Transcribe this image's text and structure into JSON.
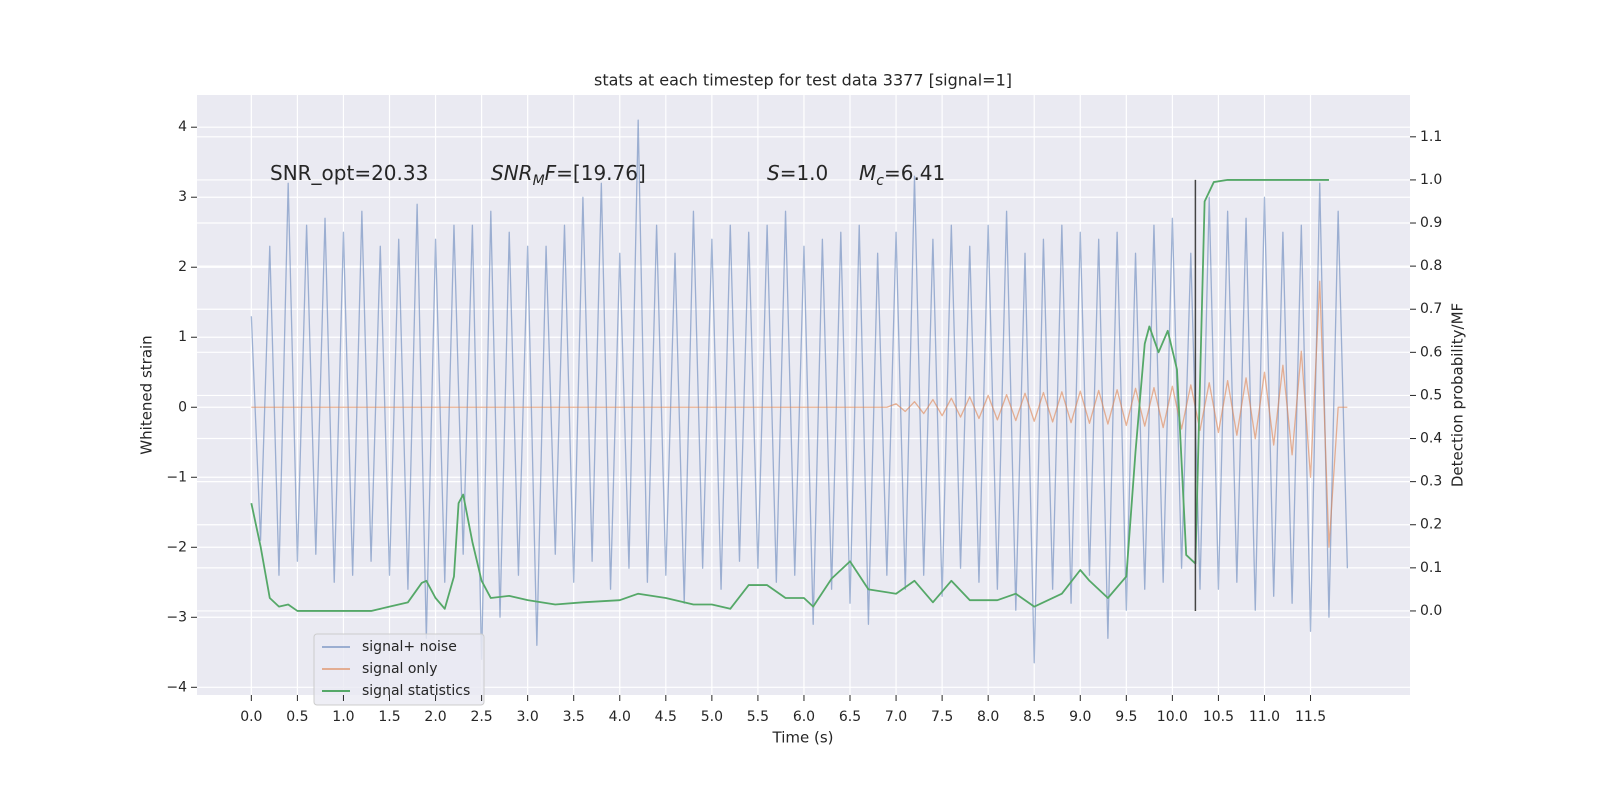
{
  "chart_data": {
    "type": "line",
    "title": "stats at each timestep for test data 3377 [signal=1]",
    "xlabel": "Time (s)",
    "ylabel": "Whitened strain",
    "y2label": "Detection probability/MF",
    "grid": true,
    "legend": "lower left",
    "annotations": [
      [
        {
          "text": "SNR_opt=20.33"
        }
      ],
      [
        {
          "text": "SNR",
          "style": "italic"
        },
        {
          "text": "M",
          "style": "sub"
        },
        {
          "text": "F",
          "style": "italic"
        },
        {
          "text": "=[19.76]"
        }
      ],
      [
        {
          "text": "S",
          "style": "italic"
        },
        {
          "text": "=1.0"
        }
      ],
      [
        {
          "text": "M",
          "style": "italic"
        },
        {
          "text": "c",
          "style": "sub"
        },
        {
          "text": "=6.41"
        }
      ]
    ],
    "xlim": [
      -0.59,
      12.58
    ],
    "ylim": [
      -4.11,
      4.46
    ],
    "y2lim": [
      -0.195,
      1.197
    ],
    "xticks": [
      {
        "value": 0,
        "label": "0.0"
      },
      {
        "value": 0.5,
        "label": "0.5"
      },
      {
        "value": 1,
        "label": "1.0"
      },
      {
        "value": 1.5,
        "label": "1.5"
      },
      {
        "value": 2,
        "label": "2.0"
      },
      {
        "value": 2.5,
        "label": "2.5"
      },
      {
        "value": 3,
        "label": "3.0"
      },
      {
        "value": 3.5,
        "label": "3.5"
      },
      {
        "value": 4,
        "label": "4.0"
      },
      {
        "value": 4.5,
        "label": "4.5"
      },
      {
        "value": 5,
        "label": "5.0"
      },
      {
        "value": 5.5,
        "label": "5.5"
      },
      {
        "value": 6,
        "label": "6.0"
      },
      {
        "value": 6.5,
        "label": "6.5"
      },
      {
        "value": 7,
        "label": "7.0"
      },
      {
        "value": 7.5,
        "label": "7.5"
      },
      {
        "value": 8,
        "label": "8.0"
      },
      {
        "value": 8.5,
        "label": "8.5"
      },
      {
        "value": 9,
        "label": "9.0"
      },
      {
        "value": 9.5,
        "label": "9.5"
      },
      {
        "value": 10,
        "label": "10.0"
      },
      {
        "value": 10.5,
        "label": "10.5"
      },
      {
        "value": 11,
        "label": "11.0"
      },
      {
        "value": 11.5,
        "label": "11.5"
      }
    ],
    "yticks": [
      {
        "value": -4,
        "label": "−4"
      },
      {
        "value": -3,
        "label": "−3"
      },
      {
        "value": -2,
        "label": "−2"
      },
      {
        "value": -1,
        "label": "−1"
      },
      0,
      1,
      2,
      3,
      4
    ],
    "y2ticks": [
      {
        "value": 0,
        "label": "0.0"
      },
      {
        "value": 0.1,
        "label": "0.1"
      },
      {
        "value": 0.2,
        "label": "0.2"
      },
      {
        "value": 0.3,
        "label": "0.3"
      },
      {
        "value": 0.4,
        "label": "0.4"
      },
      {
        "value": 0.5,
        "label": "0.5"
      },
      {
        "value": 0.6,
        "label": "0.6"
      },
      {
        "value": 0.7,
        "label": "0.7"
      },
      {
        "value": 0.8,
        "label": "0.8"
      },
      {
        "value": 0.9,
        "label": "0.9"
      },
      {
        "value": 1,
        "label": "1.0"
      },
      {
        "value": 1.1,
        "label": "1.1"
      }
    ],
    "x": [
      0.0,
      0.1,
      0.2,
      0.3,
      0.4,
      0.5,
      0.6,
      0.7,
      0.8,
      0.9,
      1.0,
      1.1,
      1.2,
      1.3,
      1.4,
      1.5,
      1.6,
      1.7,
      1.8,
      1.9,
      2.0,
      2.1,
      2.2,
      2.3,
      2.4,
      2.5,
      2.6,
      2.7,
      2.8,
      2.9,
      3.0,
      3.1,
      3.2,
      3.3,
      3.4,
      3.5,
      3.6,
      3.7,
      3.8,
      3.9,
      4.0,
      4.1,
      4.2,
      4.3,
      4.4,
      4.5,
      4.6,
      4.7,
      4.8,
      4.9,
      5.0,
      5.1,
      5.2,
      5.3,
      5.4,
      5.5,
      5.6,
      5.7,
      5.8,
      5.9,
      6.0,
      6.1,
      6.2,
      6.3,
      6.4,
      6.5,
      6.6,
      6.7,
      6.8,
      6.9,
      7.0,
      7.1,
      7.2,
      7.3,
      7.4,
      7.5,
      7.6,
      7.7,
      7.8,
      7.9,
      8.0,
      8.1,
      8.2,
      8.3,
      8.4,
      8.5,
      8.6,
      8.7,
      8.8,
      8.9,
      9.0,
      9.1,
      9.2,
      9.3,
      9.4,
      9.5,
      9.6,
      9.7,
      9.8,
      9.9,
      10.0,
      10.1,
      10.2,
      10.3,
      10.4,
      10.5,
      10.6,
      10.7,
      10.8,
      10.9,
      11.0,
      11.1,
      11.2,
      11.3,
      11.4,
      11.5,
      11.6,
      11.7,
      11.8,
      11.9
    ],
    "series": [
      {
        "name": "signal+ noise",
        "color": "#4c72b0",
        "opacity": 0.5,
        "values": [
          1.3,
          -1.9,
          2.3,
          -2.4,
          3.2,
          -2.2,
          2.6,
          -2.1,
          2.7,
          -2.5,
          2.5,
          -2.4,
          2.8,
          -2.2,
          2.3,
          -2.4,
          2.4,
          -2.6,
          2.9,
          -3.3,
          2.4,
          -2.5,
          2.6,
          -2.1,
          2.6,
          -3.6,
          2.8,
          -3.0,
          2.5,
          -2.4,
          2.3,
          -3.4,
          2.3,
          -2.1,
          2.6,
          -2.5,
          3.0,
          -2.2,
          3.2,
          -2.6,
          2.2,
          -2.3,
          4.1,
          -2.5,
          2.6,
          -2.4,
          2.2,
          -2.8,
          2.8,
          -2.3,
          2.4,
          -2.6,
          2.6,
          -2.2,
          2.5,
          -2.3,
          2.6,
          -2.5,
          2.8,
          -2.4,
          2.3,
          -3.1,
          2.4,
          -2.6,
          2.5,
          -2.8,
          2.6,
          -3.1,
          2.2,
          -2.4,
          2.5,
          -2.6,
          3.3,
          -2.4,
          2.4,
          -2.7,
          2.6,
          -2.3,
          2.3,
          -2.5,
          2.6,
          -2.6,
          2.8,
          -2.9,
          2.2,
          -3.65,
          2.4,
          -2.6,
          2.6,
          -2.8,
          2.5,
          -2.4,
          2.4,
          -3.3,
          2.5,
          -2.9,
          2.2,
          -2.6,
          2.6,
          -2.5,
          2.7,
          -2.3,
          2.2,
          -2.6,
          3.0,
          -2.6,
          2.8,
          -2.5,
          2.7,
          -2.9,
          3.0,
          -2.7,
          2.5,
          -2.8,
          2.6,
          -3.2,
          3.2,
          -3.0,
          2.8,
          -2.3
        ]
      },
      {
        "name": "signal only",
        "color": "#dd8452",
        "opacity": 0.6,
        "values": [
          0,
          0,
          0,
          0,
          0,
          0,
          0,
          0,
          0,
          0,
          0,
          0,
          0,
          0,
          0,
          0,
          0,
          0,
          0,
          0,
          0,
          0,
          0,
          0,
          0,
          0,
          0,
          0,
          0,
          0,
          0,
          0,
          0,
          0,
          0,
          0,
          0,
          0,
          0,
          0,
          0,
          0,
          0,
          0,
          0,
          0,
          0,
          0,
          0,
          0,
          0,
          0,
          0,
          0,
          0,
          0,
          0,
          0,
          0,
          0,
          0,
          0,
          0,
          0,
          0,
          0,
          0,
          0,
          0,
          0,
          0.05,
          -0.06,
          0.08,
          -0.09,
          0.11,
          -0.12,
          0.13,
          -0.14,
          0.15,
          -0.16,
          0.17,
          -0.18,
          0.18,
          -0.19,
          0.2,
          -0.2,
          0.21,
          -0.21,
          0.22,
          -0.22,
          0.23,
          -0.23,
          0.24,
          -0.24,
          0.25,
          -0.26,
          0.27,
          -0.27,
          0.28,
          -0.29,
          0.3,
          -0.31,
          0.32,
          -0.33,
          0.35,
          -0.36,
          0.38,
          -0.4,
          0.42,
          -0.45,
          0.5,
          -0.54,
          0.6,
          -0.68,
          0.8,
          -1.0,
          1.8,
          -2.0,
          0,
          0
        ]
      },
      {
        "name": "signal statistics",
        "color": "#55a868",
        "opacity": 1,
        "axis": "y2",
        "x": [
          0.0,
          0.1,
          0.2,
          0.3,
          0.4,
          0.5,
          0.7,
          1.0,
          1.3,
          1.5,
          1.7,
          1.85,
          1.9,
          2.0,
          2.1,
          2.2,
          2.25,
          2.3,
          2.4,
          2.5,
          2.6,
          2.8,
          3.0,
          3.3,
          3.6,
          4.0,
          4.2,
          4.5,
          4.8,
          5.0,
          5.2,
          5.4,
          5.6,
          5.8,
          6.0,
          6.1,
          6.3,
          6.5,
          6.7,
          7.0,
          7.2,
          7.4,
          7.6,
          7.8,
          8.1,
          8.3,
          8.5,
          8.8,
          9.0,
          9.1,
          9.3,
          9.5,
          9.6,
          9.7,
          9.75,
          9.85,
          9.95,
          10.05,
          10.15,
          10.25,
          10.35,
          10.45,
          10.6,
          11.0,
          11.5,
          11.7
        ],
        "values": [
          0.25,
          0.15,
          0.03,
          0.01,
          0.015,
          0.0,
          0.0,
          0.0,
          0.0,
          0.01,
          0.02,
          0.065,
          0.07,
          0.03,
          0.005,
          0.08,
          0.25,
          0.27,
          0.16,
          0.07,
          0.03,
          0.035,
          0.025,
          0.015,
          0.02,
          0.025,
          0.04,
          0.03,
          0.015,
          0.015,
          0.005,
          0.06,
          0.06,
          0.03,
          0.03,
          0.01,
          0.075,
          0.115,
          0.05,
          0.04,
          0.07,
          0.02,
          0.07,
          0.025,
          0.025,
          0.04,
          0.01,
          0.04,
          0.095,
          0.07,
          0.03,
          0.08,
          0.37,
          0.62,
          0.66,
          0.6,
          0.65,
          0.56,
          0.13,
          0.11,
          0.95,
          0.995,
          1.0,
          1.0,
          1.0,
          1.0
        ]
      }
    ],
    "vline": {
      "x": 10.25,
      "ymin": 0,
      "ymax": 1,
      "axis": "y2",
      "color": "#444444"
    }
  }
}
